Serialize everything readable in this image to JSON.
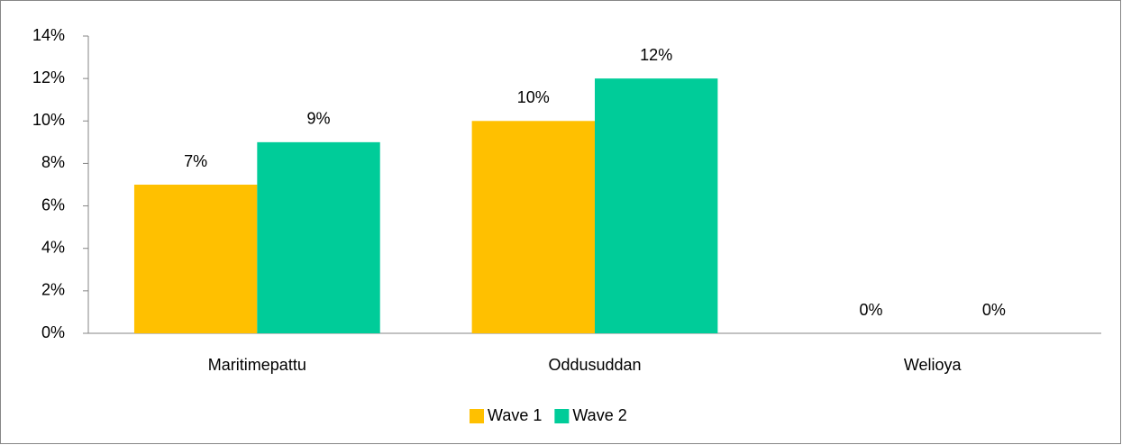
{
  "chart_data": {
    "type": "bar",
    "categories": [
      "Maritimepattu",
      "Oddusuddan",
      "Welioya"
    ],
    "series": [
      {
        "name": "Wave 1",
        "color": "#ffc000",
        "values": [
          7,
          10,
          0
        ],
        "value_labels": [
          "7%",
          "10%",
          "0%"
        ]
      },
      {
        "name": "Wave 2",
        "color": "#00cc99",
        "values": [
          9,
          12,
          0
        ],
        "value_labels": [
          "9%",
          "12%",
          "0%"
        ]
      }
    ],
    "ylim": [
      0,
      14
    ],
    "yticks": [
      {
        "value": 0,
        "label": "0%"
      },
      {
        "value": 2,
        "label": "2%"
      },
      {
        "value": 4,
        "label": "4%"
      },
      {
        "value": 6,
        "label": "6%"
      },
      {
        "value": 8,
        "label": "8%"
      },
      {
        "value": 10,
        "label": "10%"
      },
      {
        "value": 12,
        "label": "12%"
      },
      {
        "value": 14,
        "label": "14%"
      }
    ],
    "grid": false,
    "legend": "bottom"
  }
}
